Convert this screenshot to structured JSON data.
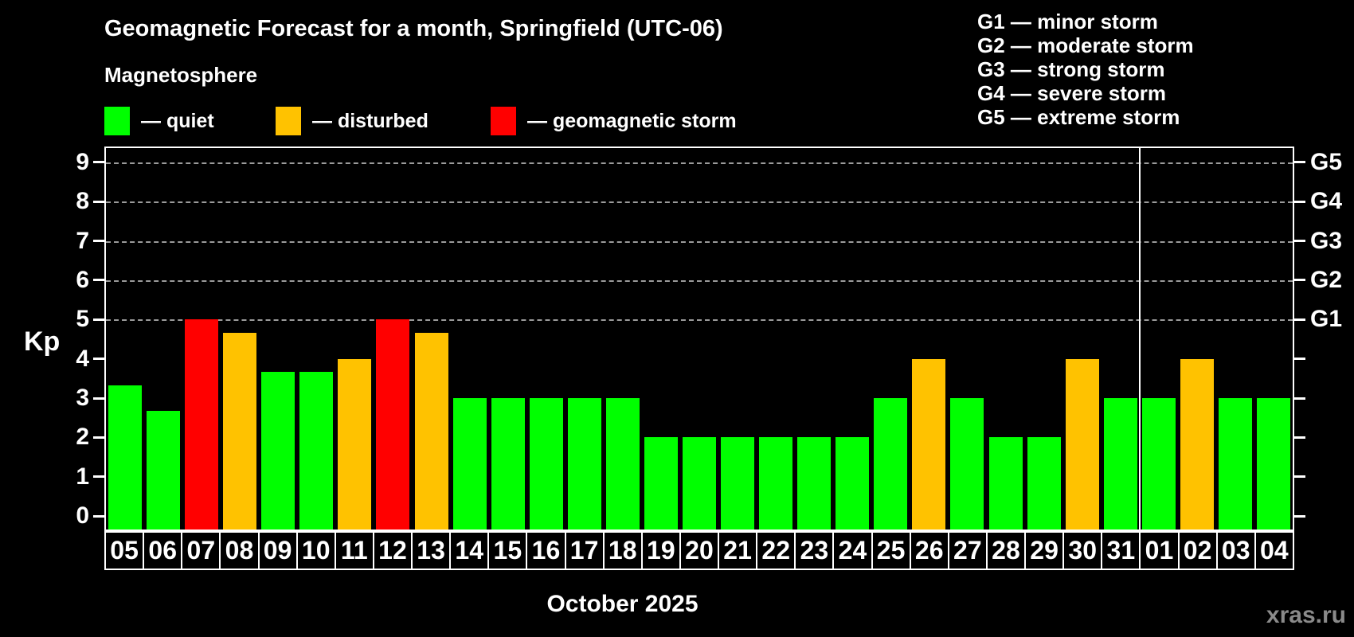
{
  "title": "Geomagnetic Forecast for a month, Springfield (UTC-06)",
  "subtitle": "Magnetosphere",
  "legend": {
    "items": [
      {
        "name": "quiet",
        "label": "— quiet",
        "color": "#00ff00"
      },
      {
        "name": "disturbed",
        "label": "— disturbed",
        "color": "#ffc200"
      },
      {
        "name": "storm",
        "label": "— geomagnetic storm",
        "color": "#ff0000"
      }
    ]
  },
  "storm_scale_legend": [
    "G1 — minor storm",
    "G2 — moderate storm",
    "G3 — strong storm",
    "G4 — severe storm",
    "G5 — extreme storm"
  ],
  "watermark": "xras.ru",
  "chart_data": {
    "type": "bar",
    "title": "Geomagnetic Forecast for a month, Springfield (UTC-06)",
    "ylabel": "Kp",
    "month_label": "October 2025",
    "ylim": [
      -0.34,
      9.36
    ],
    "yticks": [
      0,
      1,
      2,
      3,
      4,
      5,
      6,
      7,
      8,
      9
    ],
    "gridlines_at_kp": [
      5,
      6,
      7,
      8,
      9
    ],
    "right_axis_labels": [
      {
        "kp": 9,
        "label": "G5"
      },
      {
        "kp": 8,
        "label": "G4"
      },
      {
        "kp": 7,
        "label": "G3"
      },
      {
        "kp": 6,
        "label": "G2"
      },
      {
        "kp": 5,
        "label": "G1"
      }
    ],
    "grid_color": "#9b9b9b",
    "colors_by_status": {
      "quiet": "#00ff00",
      "disturbed": "#ffc200",
      "storm": "#ff0000"
    },
    "categories": [
      "05",
      "06",
      "07",
      "08",
      "09",
      "10",
      "11",
      "12",
      "13",
      "14",
      "15",
      "16",
      "17",
      "18",
      "19",
      "20",
      "21",
      "22",
      "23",
      "24",
      "25",
      "26",
      "27",
      "28",
      "29",
      "30",
      "31",
      "01",
      "02",
      "03",
      "04"
    ],
    "values": [
      3.33,
      2.67,
      5,
      4.67,
      3.67,
      3.67,
      4,
      5,
      4.67,
      3,
      3,
      3,
      3,
      3,
      2,
      2,
      2,
      2,
      2,
      2,
      3,
      4,
      3,
      2,
      2,
      4,
      3,
      3,
      4,
      3,
      3
    ],
    "statuses": [
      "quiet",
      "quiet",
      "storm",
      "disturbed",
      "quiet",
      "quiet",
      "disturbed",
      "storm",
      "disturbed",
      "quiet",
      "quiet",
      "quiet",
      "quiet",
      "quiet",
      "quiet",
      "quiet",
      "quiet",
      "quiet",
      "quiet",
      "quiet",
      "quiet",
      "disturbed",
      "quiet",
      "quiet",
      "quiet",
      "disturbed",
      "quiet",
      "quiet",
      "disturbed",
      "quiet",
      "quiet"
    ],
    "month_separator_after_index": 26,
    "legend_position": "top",
    "grid": "dashed horizontal at storm levels only"
  }
}
